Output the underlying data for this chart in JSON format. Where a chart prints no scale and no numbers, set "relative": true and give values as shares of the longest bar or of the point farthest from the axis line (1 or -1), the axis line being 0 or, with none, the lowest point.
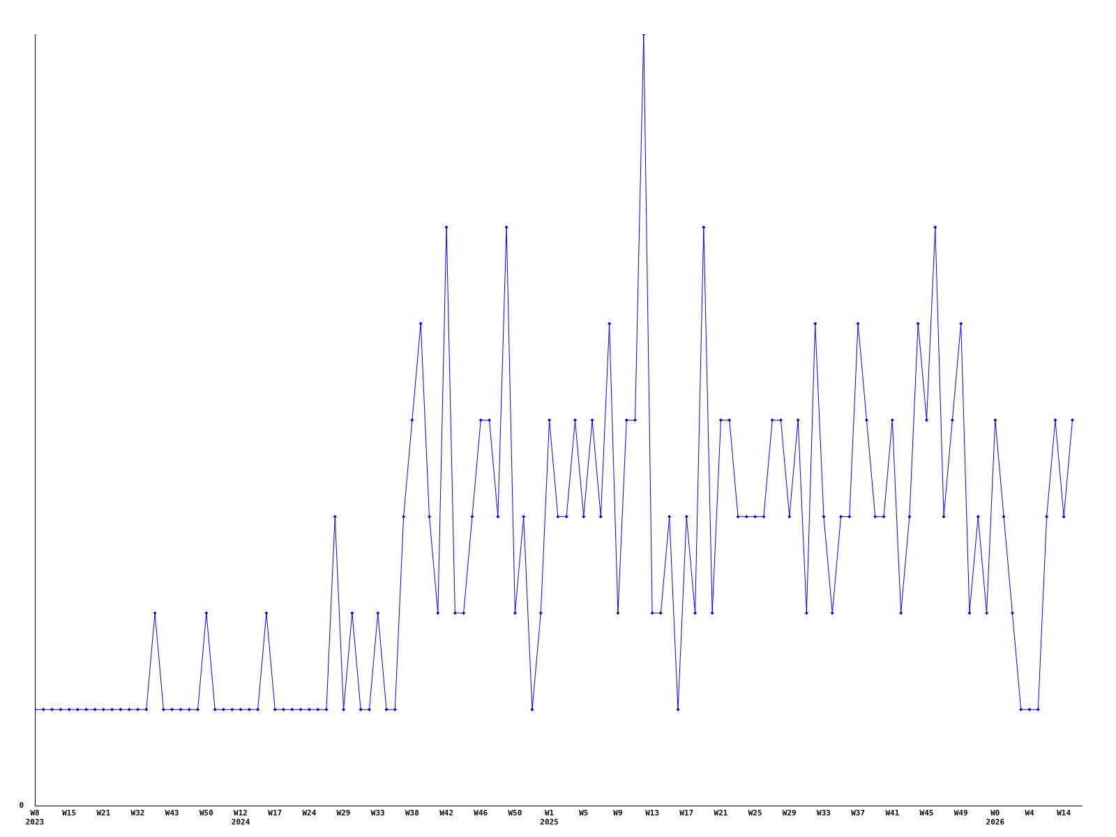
{
  "chart_data": {
    "type": "line",
    "relative": true,
    "marker": "diamond",
    "legend": false,
    "grid": false,
    "annotations": [
      "0"
    ],
    "categories": [
      "W8\n2023",
      null,
      null,
      null,
      "W15",
      null,
      null,
      null,
      "W21",
      null,
      null,
      null,
      "W32",
      null,
      null,
      null,
      "W43",
      null,
      null,
      null,
      "W50",
      null,
      null,
      null,
      "W12\n2024",
      null,
      null,
      null,
      "W17",
      null,
      null,
      null,
      "W24",
      null,
      null,
      null,
      "W29",
      null,
      null,
      null,
      "W33",
      null,
      null,
      null,
      "W38",
      null,
      null,
      null,
      "W42",
      null,
      null,
      null,
      "W46",
      null,
      null,
      null,
      "W50",
      null,
      null,
      null,
      "W1\n2025",
      null,
      null,
      null,
      "W5",
      null,
      null,
      null,
      "W9",
      null,
      null,
      null,
      "W13",
      null,
      null,
      null,
      "W17",
      null,
      null,
      null,
      "W21",
      null,
      null,
      null,
      "W25",
      null,
      null,
      null,
      "W29",
      null,
      null,
      null,
      "W33",
      null,
      null,
      null,
      "W37",
      null,
      null,
      null,
      "W41",
      null,
      null,
      null,
      "W45",
      null,
      null,
      null,
      "W49",
      null,
      null,
      null,
      "W0\n2026",
      null,
      null,
      null,
      "W4",
      null,
      null,
      null,
      "W14",
      null
    ],
    "series": [
      {
        "color": "#0000ff",
        "values": [
          0.125,
          0.125,
          0.125,
          0.125,
          0.125,
          0.125,
          0.125,
          0.125,
          0.125,
          0.125,
          0.125,
          0.125,
          0.125,
          0.125,
          0.25,
          0.125,
          0.125,
          0.125,
          0.125,
          0.125,
          0.25,
          0.125,
          0.125,
          0.125,
          0.125,
          0.125,
          0.125,
          0.25,
          0.125,
          0.125,
          0.125,
          0.125,
          0.125,
          0.125,
          0.125,
          0.375,
          0.125,
          0.25,
          0.125,
          0.125,
          0.25,
          0.125,
          0.125,
          0.375,
          0.5,
          0.625,
          0.375,
          0.25,
          0.75,
          0.25,
          0.25,
          0.375,
          0.5,
          0.5,
          0.375,
          0.75,
          0.25,
          0.375,
          0.125,
          0.25,
          0.5,
          0.375,
          0.375,
          0.5,
          0.375,
          0.5,
          0.375,
          0.625,
          0.25,
          0.5,
          0.5,
          1,
          0.25,
          0.25,
          0.375,
          0.125,
          0.375,
          0.25,
          0.75,
          0.25,
          0.5,
          0.5,
          0.375,
          0.375,
          0.375,
          0.375,
          0.5,
          0.5,
          0.375,
          0.5,
          0.25,
          0.625,
          0.375,
          0.25,
          0.375,
          0.375,
          0.625,
          0.5,
          0.375,
          0.375,
          0.5,
          0.25,
          0.375,
          0.625,
          0.5,
          0.75,
          0.375,
          0.5,
          0.625,
          0.25,
          0.375,
          0.25,
          0.5,
          0.375,
          0.25,
          0.125,
          0.125,
          0.125,
          0.375,
          0.5,
          0.375,
          0.5
        ]
      }
    ]
  }
}
